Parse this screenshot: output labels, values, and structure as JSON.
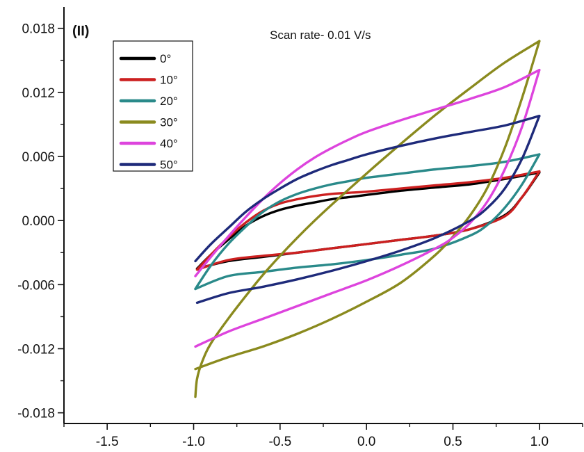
{
  "chart_data": {
    "type": "line",
    "panel_label": "(II)",
    "annotation": "Scan rate- 0.01 V/s",
    "xlabel": "",
    "ylabel": "",
    "xlim": [
      -1.75,
      1.25
    ],
    "ylim": [
      -0.019,
      0.02
    ],
    "x_ticks": [
      "-1.5",
      "-1.0",
      "-0.5",
      "0.0",
      "0.5",
      "1.0"
    ],
    "x_tick_values": [
      -1.5,
      -1.0,
      -0.5,
      0.0,
      0.5,
      1.0
    ],
    "y_ticks": [
      "0.018",
      "0.012",
      "0.006",
      "0.000",
      "-0.006",
      "-0.012",
      "-0.018"
    ],
    "y_tick_values": [
      0.018,
      0.012,
      0.006,
      0.0,
      -0.006,
      -0.012,
      -0.018
    ],
    "grid": false,
    "legend_position": "top-left",
    "series": [
      {
        "name": "0°",
        "color": "#000000",
        "anodic": [
          [
            -0.98,
            -0.0045
          ],
          [
            -0.9,
            -0.0032
          ],
          [
            -0.8,
            -0.0018
          ],
          [
            -0.7,
            -0.0005
          ],
          [
            -0.6,
            0.0004
          ],
          [
            -0.5,
            0.001
          ],
          [
            -0.4,
            0.0014
          ],
          [
            -0.3,
            0.0017
          ],
          [
            -0.2,
            0.002
          ],
          [
            -0.1,
            0.0022
          ],
          [
            0.0,
            0.0024
          ],
          [
            0.2,
            0.0028
          ],
          [
            0.4,
            0.0031
          ],
          [
            0.6,
            0.0034
          ],
          [
            0.8,
            0.0039
          ],
          [
            1.0,
            0.0045
          ]
        ],
        "cathodic": [
          [
            1.0,
            0.0045
          ],
          [
            0.9,
            0.0022
          ],
          [
            0.8,
            0.0005
          ],
          [
            0.6,
            -0.0008
          ],
          [
            0.4,
            -0.0014
          ],
          [
            0.2,
            -0.0018
          ],
          [
            0.0,
            -0.0022
          ],
          [
            -0.2,
            -0.0026
          ],
          [
            -0.4,
            -0.003
          ],
          [
            -0.6,
            -0.0034
          ],
          [
            -0.8,
            -0.0038
          ],
          [
            -0.98,
            -0.0045
          ]
        ]
      },
      {
        "name": "10°",
        "color": "#cc2020",
        "anodic": [
          [
            -0.98,
            -0.0046
          ],
          [
            -0.9,
            -0.0032
          ],
          [
            -0.8,
            -0.0016
          ],
          [
            -0.7,
            -0.0002
          ],
          [
            -0.6,
            0.0009
          ],
          [
            -0.5,
            0.0016
          ],
          [
            -0.4,
            0.002
          ],
          [
            -0.3,
            0.0023
          ],
          [
            -0.2,
            0.0025
          ],
          [
            -0.1,
            0.0026
          ],
          [
            0.0,
            0.0027
          ],
          [
            0.2,
            0.003
          ],
          [
            0.4,
            0.0033
          ],
          [
            0.6,
            0.0036
          ],
          [
            0.8,
            0.004
          ],
          [
            1.0,
            0.0046
          ]
        ],
        "cathodic": [
          [
            1.0,
            0.0046
          ],
          [
            0.9,
            0.0022
          ],
          [
            0.8,
            0.0004
          ],
          [
            0.6,
            -0.0008
          ],
          [
            0.4,
            -0.0014
          ],
          [
            0.2,
            -0.0018
          ],
          [
            0.0,
            -0.0022
          ],
          [
            -0.2,
            -0.0026
          ],
          [
            -0.4,
            -0.003
          ],
          [
            -0.6,
            -0.0033
          ],
          [
            -0.8,
            -0.0037
          ],
          [
            -0.98,
            -0.0046
          ]
        ]
      },
      {
        "name": "20°",
        "color": "#2a8a8a",
        "anodic": [
          [
            -0.99,
            -0.0064
          ],
          [
            -0.9,
            -0.0042
          ],
          [
            -0.8,
            -0.0022
          ],
          [
            -0.7,
            -0.0006
          ],
          [
            -0.6,
            0.0008
          ],
          [
            -0.5,
            0.0018
          ],
          [
            -0.4,
            0.0025
          ],
          [
            -0.3,
            0.003
          ],
          [
            -0.2,
            0.0034
          ],
          [
            -0.1,
            0.0037
          ],
          [
            0.0,
            0.004
          ],
          [
            0.2,
            0.0044
          ],
          [
            0.4,
            0.0048
          ],
          [
            0.6,
            0.0051
          ],
          [
            0.8,
            0.0055
          ],
          [
            1.0,
            0.0062
          ]
        ],
        "cathodic": [
          [
            1.0,
            0.0062
          ],
          [
            0.9,
            0.0034
          ],
          [
            0.8,
            0.0012
          ],
          [
            0.7,
            -0.0004
          ],
          [
            0.6,
            -0.0014
          ],
          [
            0.4,
            -0.0026
          ],
          [
            0.2,
            -0.0032
          ],
          [
            0.0,
            -0.0037
          ],
          [
            -0.2,
            -0.0041
          ],
          [
            -0.4,
            -0.0044
          ],
          [
            -0.6,
            -0.0048
          ],
          [
            -0.8,
            -0.0052
          ],
          [
            -0.99,
            -0.0064
          ]
        ]
      },
      {
        "name": "30°",
        "color": "#8a8a1e",
        "anodic": [
          [
            -0.99,
            -0.0165
          ],
          [
            -0.98,
            -0.0148
          ],
          [
            -0.95,
            -0.0132
          ],
          [
            -0.9,
            -0.0115
          ],
          [
            -0.8,
            -0.0092
          ],
          [
            -0.7,
            -0.0071
          ],
          [
            -0.6,
            -0.0051
          ],
          [
            -0.5,
            -0.0033
          ],
          [
            -0.4,
            -0.0016
          ],
          [
            -0.3,
            0.0
          ],
          [
            -0.2,
            0.0015
          ],
          [
            0.0,
            0.0044
          ],
          [
            0.2,
            0.0072
          ],
          [
            0.4,
            0.0099
          ],
          [
            0.6,
            0.0124
          ],
          [
            0.8,
            0.0148
          ],
          [
            1.0,
            0.0168
          ]
        ],
        "cathodic": [
          [
            1.0,
            0.0168
          ],
          [
            0.9,
            0.0115
          ],
          [
            0.8,
            0.0068
          ],
          [
            0.7,
            0.0031
          ],
          [
            0.6,
            0.0005
          ],
          [
            0.5,
            -0.0015
          ],
          [
            0.4,
            -0.0032
          ],
          [
            0.2,
            -0.0058
          ],
          [
            0.0,
            -0.0076
          ],
          [
            -0.2,
            -0.0092
          ],
          [
            -0.4,
            -0.0106
          ],
          [
            -0.6,
            -0.0118
          ],
          [
            -0.8,
            -0.0128
          ],
          [
            -0.99,
            -0.0139
          ]
        ]
      },
      {
        "name": "40°",
        "color": "#dd44dd",
        "anodic": [
          [
            -0.99,
            -0.0052
          ],
          [
            -0.9,
            -0.0034
          ],
          [
            -0.8,
            -0.0015
          ],
          [
            -0.7,
            0.0003
          ],
          [
            -0.6,
            0.002
          ],
          [
            -0.5,
            0.0035
          ],
          [
            -0.4,
            0.0048
          ],
          [
            -0.3,
            0.0059
          ],
          [
            -0.2,
            0.0068
          ],
          [
            -0.1,
            0.0076
          ],
          [
            0.0,
            0.0083
          ],
          [
            0.2,
            0.0094
          ],
          [
            0.4,
            0.0104
          ],
          [
            0.6,
            0.0114
          ],
          [
            0.8,
            0.0125
          ],
          [
            1.0,
            0.0141
          ]
        ],
        "cathodic": [
          [
            1.0,
            0.0141
          ],
          [
            0.9,
            0.0088
          ],
          [
            0.8,
            0.0048
          ],
          [
            0.7,
            0.0018
          ],
          [
            0.6,
            -0.0002
          ],
          [
            0.5,
            -0.0016
          ],
          [
            0.4,
            -0.0026
          ],
          [
            0.2,
            -0.0042
          ],
          [
            0.0,
            -0.0056
          ],
          [
            -0.2,
            -0.0068
          ],
          [
            -0.4,
            -0.008
          ],
          [
            -0.6,
            -0.0092
          ],
          [
            -0.8,
            -0.0104
          ],
          [
            -0.99,
            -0.0118
          ]
        ]
      },
      {
        "name": "50°",
        "color": "#1e2a7a",
        "anodic": [
          [
            -0.99,
            -0.0038
          ],
          [
            -0.9,
            -0.0022
          ],
          [
            -0.8,
            -0.0007
          ],
          [
            -0.7,
            0.0008
          ],
          [
            -0.6,
            0.002
          ],
          [
            -0.5,
            0.003
          ],
          [
            -0.4,
            0.0039
          ],
          [
            -0.3,
            0.0046
          ],
          [
            -0.2,
            0.0052
          ],
          [
            -0.1,
            0.0057
          ],
          [
            0.0,
            0.0062
          ],
          [
            0.2,
            0.007
          ],
          [
            0.4,
            0.0077
          ],
          [
            0.6,
            0.0083
          ],
          [
            0.8,
            0.0089
          ],
          [
            1.0,
            0.0098
          ]
        ],
        "cathodic": [
          [
            1.0,
            0.0098
          ],
          [
            0.9,
            0.0058
          ],
          [
            0.8,
            0.003
          ],
          [
            0.7,
            0.0012
          ],
          [
            0.6,
            0.0
          ],
          [
            0.4,
            -0.0016
          ],
          [
            0.2,
            -0.0028
          ],
          [
            0.0,
            -0.0038
          ],
          [
            -0.2,
            -0.0047
          ],
          [
            -0.4,
            -0.0055
          ],
          [
            -0.6,
            -0.0062
          ],
          [
            -0.8,
            -0.0068
          ],
          [
            -0.98,
            -0.0077
          ]
        ]
      }
    ]
  }
}
